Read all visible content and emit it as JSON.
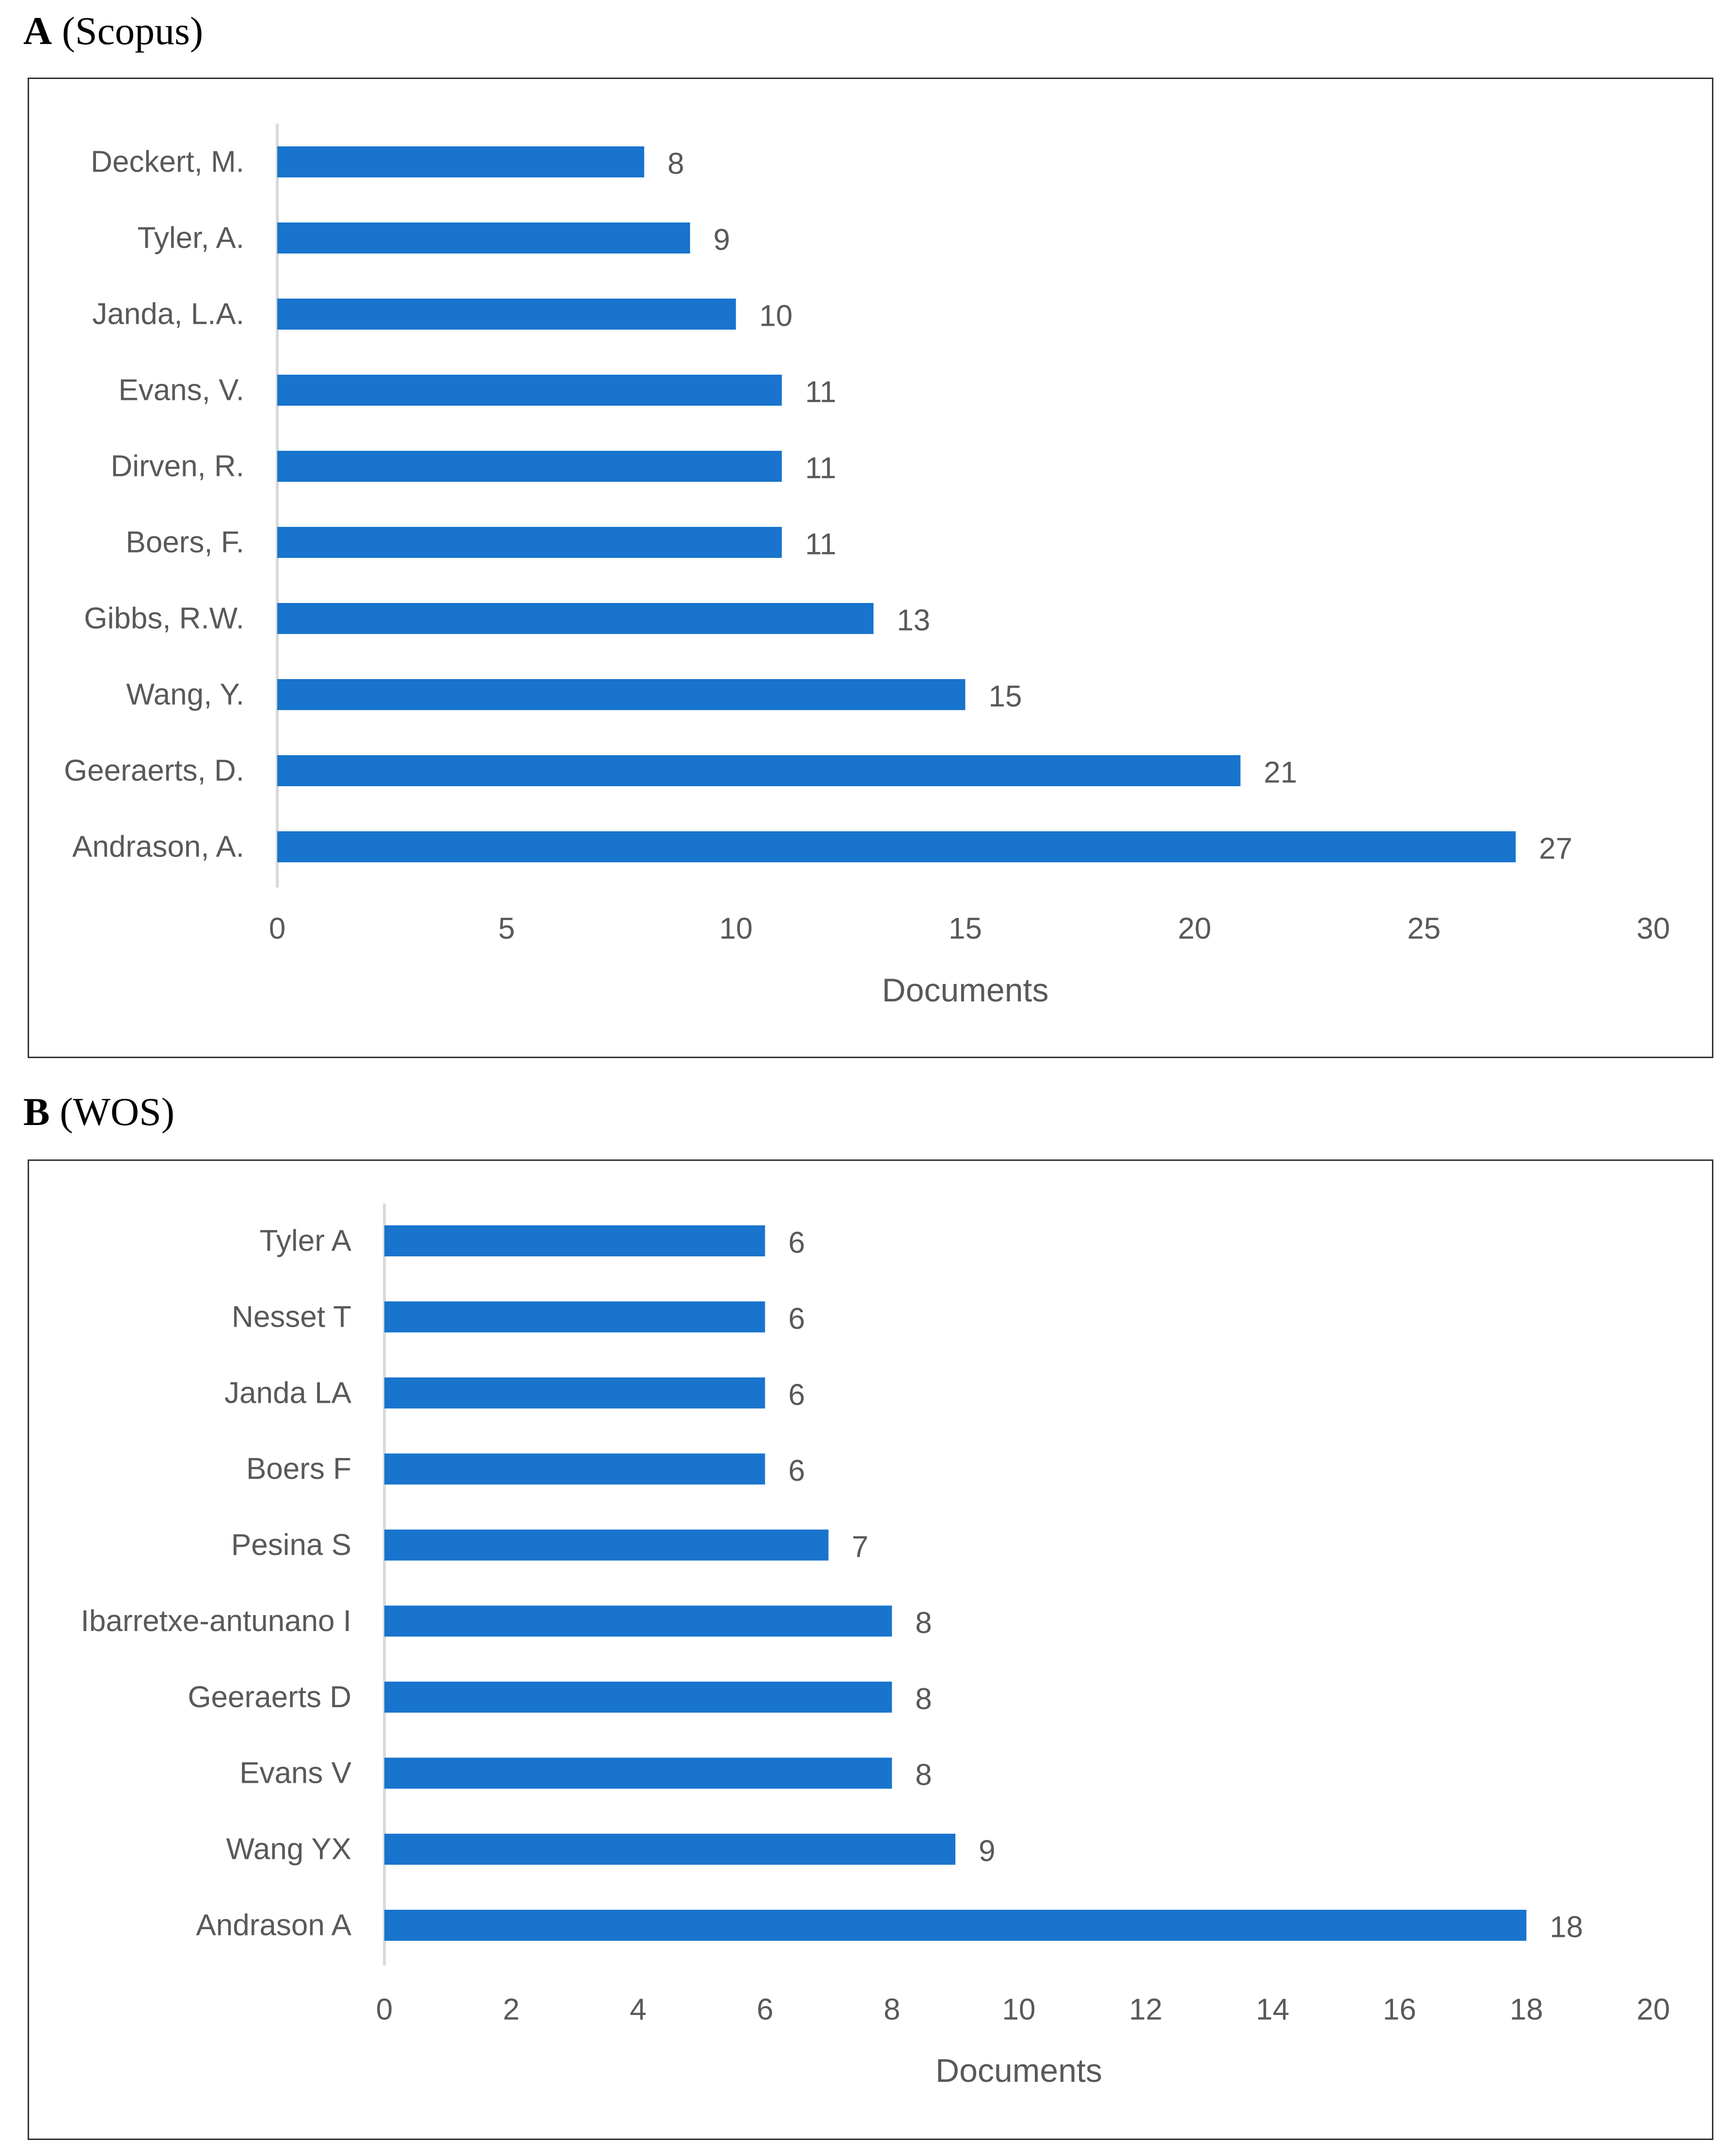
{
  "chart_data": [
    {
      "type": "bar",
      "orientation": "horizontal",
      "panel_letter": "A",
      "panel_label": "(Scopus)",
      "categories": [
        "Deckert, M.",
        "Tyler, A.",
        "Janda, L.A.",
        "Evans, V.",
        "Dirven, R.",
        "Boers, F.",
        "Gibbs, R.W.",
        "Wang, Y.",
        "Geeraerts, D.",
        "Andrason, A."
      ],
      "values": [
        8,
        9,
        10,
        11,
        11,
        11,
        13,
        15,
        21,
        27
      ],
      "xlabel": "Documents",
      "ylabel": "",
      "xlim": [
        0,
        30
      ],
      "xticks": [
        0,
        5,
        10,
        15,
        20,
        25,
        30
      ],
      "grid": false,
      "bar_color": "#1874CD"
    },
    {
      "type": "bar",
      "orientation": "horizontal",
      "panel_letter": "B",
      "panel_label": "(WOS)",
      "categories": [
        "Tyler A",
        "Nesset T",
        "Janda LA",
        "Boers F",
        "Pesina S",
        "Ibarretxe-antunano I",
        "Geeraerts D",
        "Evans V",
        "Wang YX",
        "Andrason A"
      ],
      "values": [
        6,
        6,
        6,
        6,
        7,
        8,
        8,
        8,
        9,
        18
      ],
      "xlabel": "Documents",
      "ylabel": "",
      "xlim": [
        0,
        20
      ],
      "xticks": [
        0,
        2,
        4,
        6,
        8,
        10,
        12,
        14,
        16,
        18,
        20
      ],
      "grid": false,
      "bar_color": "#1874CD"
    }
  ]
}
